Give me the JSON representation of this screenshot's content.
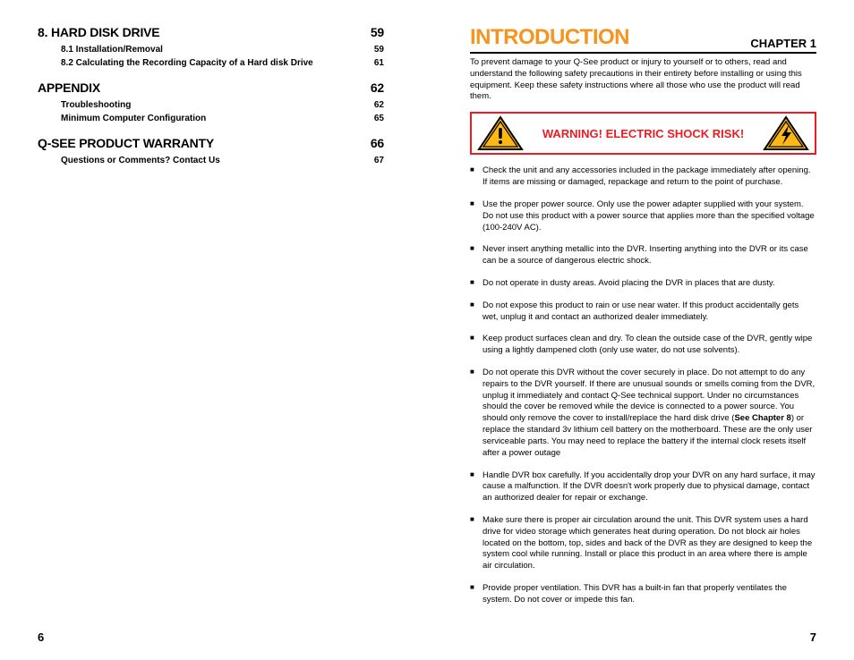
{
  "leftPage": {
    "number": "6",
    "toc": [
      {
        "title": "8. HARD DISK DRIVE",
        "page": "59",
        "items": [
          {
            "label": "8.1 Installation/Removal",
            "page": "59"
          },
          {
            "label": "8.2 Calculating the Recording Capacity of a Hard disk Drive",
            "page": "61"
          }
        ]
      },
      {
        "title": "APPENDIX",
        "page": "62",
        "items": [
          {
            "label": "Troubleshooting",
            "page": "62"
          },
          {
            "label": "Minimum Computer Configuration",
            "page": "65"
          }
        ]
      },
      {
        "title": "Q-SEE PRODUCT WARRANTY",
        "page": "66",
        "items": [
          {
            "label": "Questions or Comments? Contact Us",
            "page": "67"
          }
        ]
      }
    ]
  },
  "rightPage": {
    "number": "7",
    "chapterTitle": "INTRODUCTION",
    "chapterLabel": "CHAPTER 1",
    "introText": "To prevent damage to your Q-See product or injury to yourself or to others, read and understand the following safety precautions in their entirety before installing or using this equipment. Keep these safety instructions where all those who use the product will read them.",
    "warningText": "WARNING! ELECTRIC SHOCK RISK!",
    "bulletBoldRef": "See Chapter 8",
    "bullets": [
      "Check the unit and any accessories included in the package immediately after opening. If items are missing or damaged, repackage and return to the point of purchase.",
      "Use the proper power source. Only use the power adapter supplied with your system. Do not use this product with a power source that applies more than the specified voltage (100-240V AC).",
      "Never insert anything metallic into the DVR. Inserting anything into the DVR or its case can be a source of dangerous electric shock.",
      "Do not operate in dusty areas. Avoid placing the DVR in places that are dusty.",
      "Do not expose this product to rain or use near water. If this product accidentally gets wet, unplug it and contact an authorized dealer immediately.",
      "Keep product surfaces clean and dry. To clean the outside case of the DVR, gently wipe using a lightly dampened cloth (only use water, do not use solvents).",
      "Do not operate this DVR without the cover securely in place. Do not attempt to do any repairs to the DVR yourself. If there are unusual sounds or smells coming from the DVR, unplug it immediately and contact Q-See technical support. Under no circumstances should the cover be removed while the device is connected to a power source. You should only remove the cover to install/replace the hard disk drive (__BOLD__) or replace the standard 3v lithium cell battery on the motherboard. These are the only user serviceable parts. You may need to replace the battery if the internal clock resets itself after a power outage",
      "Handle DVR box carefully. If you accidentally drop your DVR on any hard surface, it may cause a malfunction. If the DVR doesn't work properly due to physical damage, contact an authorized dealer for repair or exchange.",
      "Make sure there is proper air circulation around the unit. This DVR system uses a hard drive for video storage which generates heat during operation. Do not block air holes located on the bottom, top, sides and back of the DVR as they are designed to keep the system cool while running. Install or place this product in an area where there is ample air circulation.",
      "Provide proper ventilation. This DVR has a built-in fan that properly ventilates the system. Do not cover or impede this fan."
    ]
  },
  "colors": {
    "accent": "#f7941d",
    "warningRed": "#ed1c24",
    "iconYellow": "#fdb913",
    "iconBorder": "#000000"
  }
}
